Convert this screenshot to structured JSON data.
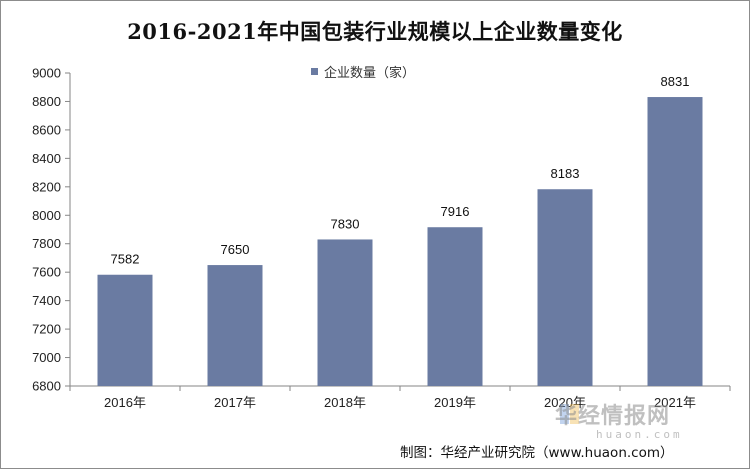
{
  "chart_data": {
    "type": "bar",
    "title": "2016-2021年中国包装行业规模以上企业数量变化",
    "categories": [
      "2016年",
      "2017年",
      "2018年",
      "2019年",
      "2020年",
      "2021年"
    ],
    "series": [
      {
        "name": "企业数量（家）",
        "values": [
          7582,
          7650,
          7830,
          7916,
          8183,
          8831
        ]
      }
    ],
    "data_labels": [
      "7582",
      "7650",
      "7830",
      "7916",
      "8183",
      "8831"
    ],
    "y_ticks": [
      "6800",
      "7000",
      "7200",
      "7400",
      "7600",
      "7800",
      "8000",
      "8200",
      "8400",
      "8600",
      "8800",
      "9000"
    ],
    "ylim": [
      6800,
      9000
    ],
    "ytick_step": 200,
    "xlabel": "",
    "ylabel": "",
    "grid": false,
    "legend_position": "top-center",
    "bar_color": "#6a7ba2"
  },
  "watermark": {
    "brand": "华经情报网",
    "url": "huaon.com"
  },
  "source_note": "制图：华经产业研究院（www.huaon.com）"
}
